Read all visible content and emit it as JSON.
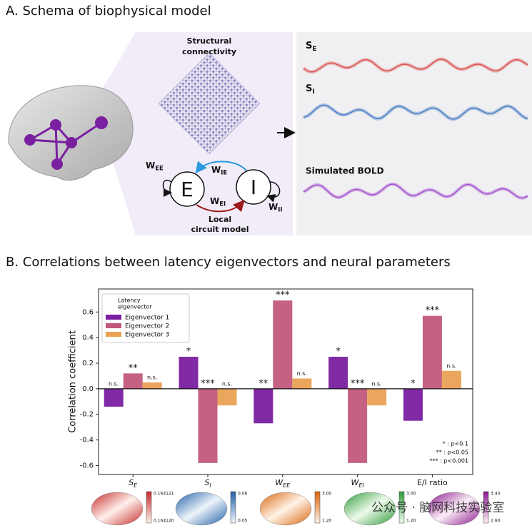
{
  "panel_a": {
    "title": "A. Schema of biophysical model",
    "connectivity_label": [
      "Structural",
      "connectivity"
    ],
    "circuit_label": [
      "Local",
      "circuit model"
    ],
    "node_e": "E",
    "node_i": "I",
    "w_ee": {
      "main": "W",
      "sub": "EE"
    },
    "w_ie": {
      "main": "W",
      "sub": "IE"
    },
    "w_ei": {
      "main": "W",
      "sub": "EI"
    },
    "w_ii": {
      "main": "W",
      "sub": "II"
    },
    "trace_se": {
      "main": "S",
      "sub": "E"
    },
    "trace_si": {
      "main": "S",
      "sub": "I"
    },
    "trace_bold": "Simulated BOLD"
  },
  "panel_b_title": "B. Correlations between latency eigenvectors and neural parameters",
  "chart_data": {
    "type": "bar",
    "ylabel": "Correlation coefficient",
    "categories": [
      "S",
      "S",
      "W",
      "W",
      "E/I ratio"
    ],
    "category_subscripts": [
      "E",
      "I",
      "EE",
      "EI",
      null
    ],
    "legend_title": [
      "Latency",
      "eigenvector"
    ],
    "series": [
      {
        "name": "Eigenvector 1",
        "color": "#7a1fa0",
        "values": [
          -0.14,
          0.25,
          -0.27,
          0.25,
          -0.25
        ],
        "significance": [
          "n.s.",
          "*",
          "**",
          "*",
          "*"
        ]
      },
      {
        "name": "Eigenvector 2",
        "color": "#c2587c",
        "values": [
          0.12,
          -0.58,
          0.69,
          -0.58,
          0.57
        ],
        "significance": [
          "**",
          "***",
          "***",
          "***",
          "***"
        ]
      },
      {
        "name": "Eigenvector 3",
        "color": "#e9a153",
        "values": [
          0.05,
          -0.13,
          0.08,
          -0.13,
          0.14
        ],
        "significance": [
          "n.s.",
          "n.s.",
          "n.s.",
          "n.s.",
          "n.s."
        ]
      }
    ],
    "ylim": [
      -0.67,
      0.78
    ],
    "yticks": [
      -0.6,
      -0.4,
      -0.2,
      {
        "value": 0,
        "label": "0.0"
      },
      0.2,
      0.4,
      0.6
    ],
    "p_value_notes": [
      "* : p<0.1",
      "** : p<0.05",
      "*** : p<0.001"
    ]
  },
  "brain_maps": [
    {
      "max": "0.164121",
      "min": "0.164120",
      "colors": [
        "#fff1ec",
        "#c62a2a"
      ]
    },
    {
      "max": "0.06",
      "min": "0.05",
      "colors": [
        "#eef4fb",
        "#1f5fa6"
      ]
    },
    {
      "max": "3.00",
      "min": "1.20",
      "colors": [
        "#fff3e6",
        "#d9640f"
      ]
    },
    {
      "max": "3.00",
      "min": "1.20",
      "colors": [
        "#eefaea",
        "#2e9a3c"
      ]
    },
    {
      "max": "3.40",
      "min": "2.60",
      "colors": [
        "#fbeef5",
        "#8a178f"
      ]
    }
  ],
  "watermark": "公众号 · 脑网科技实验室"
}
